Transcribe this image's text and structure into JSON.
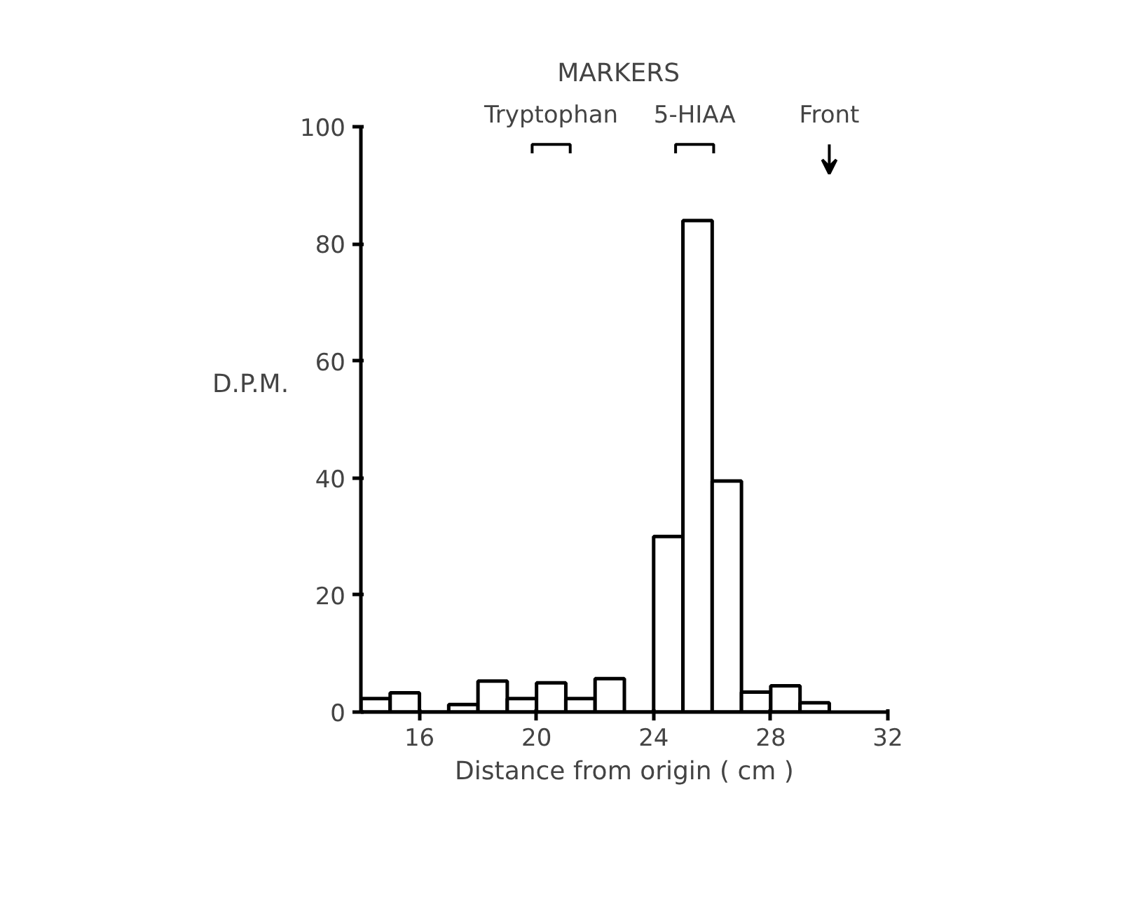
{
  "chart_data": {
    "type": "histogram",
    "title": "MARKERS",
    "xlabel": "Distance from origin ( cm )",
    "ylabel": "D.P.M.",
    "bins": [
      14,
      15,
      16,
      17,
      18,
      19,
      20,
      21,
      22,
      23,
      24,
      25,
      26,
      27,
      28,
      29,
      30
    ],
    "values": [
      2.3,
      3.3,
      0,
      1.3,
      5.3,
      2.3,
      5,
      2.3,
      5.7,
      0,
      30,
      84,
      39.5,
      3.4,
      4.5,
      1.6
    ],
    "color": "#000000",
    "xlim": [
      14,
      32
    ],
    "xticks": [
      16,
      20,
      24,
      28,
      32
    ],
    "ylim": [
      0,
      100
    ],
    "yticks": [
      0,
      20,
      40,
      60,
      80,
      100
    ],
    "annotations": [
      "Tryptophan",
      "5-HIAA",
      "Front"
    ],
    "grid": false
  }
}
